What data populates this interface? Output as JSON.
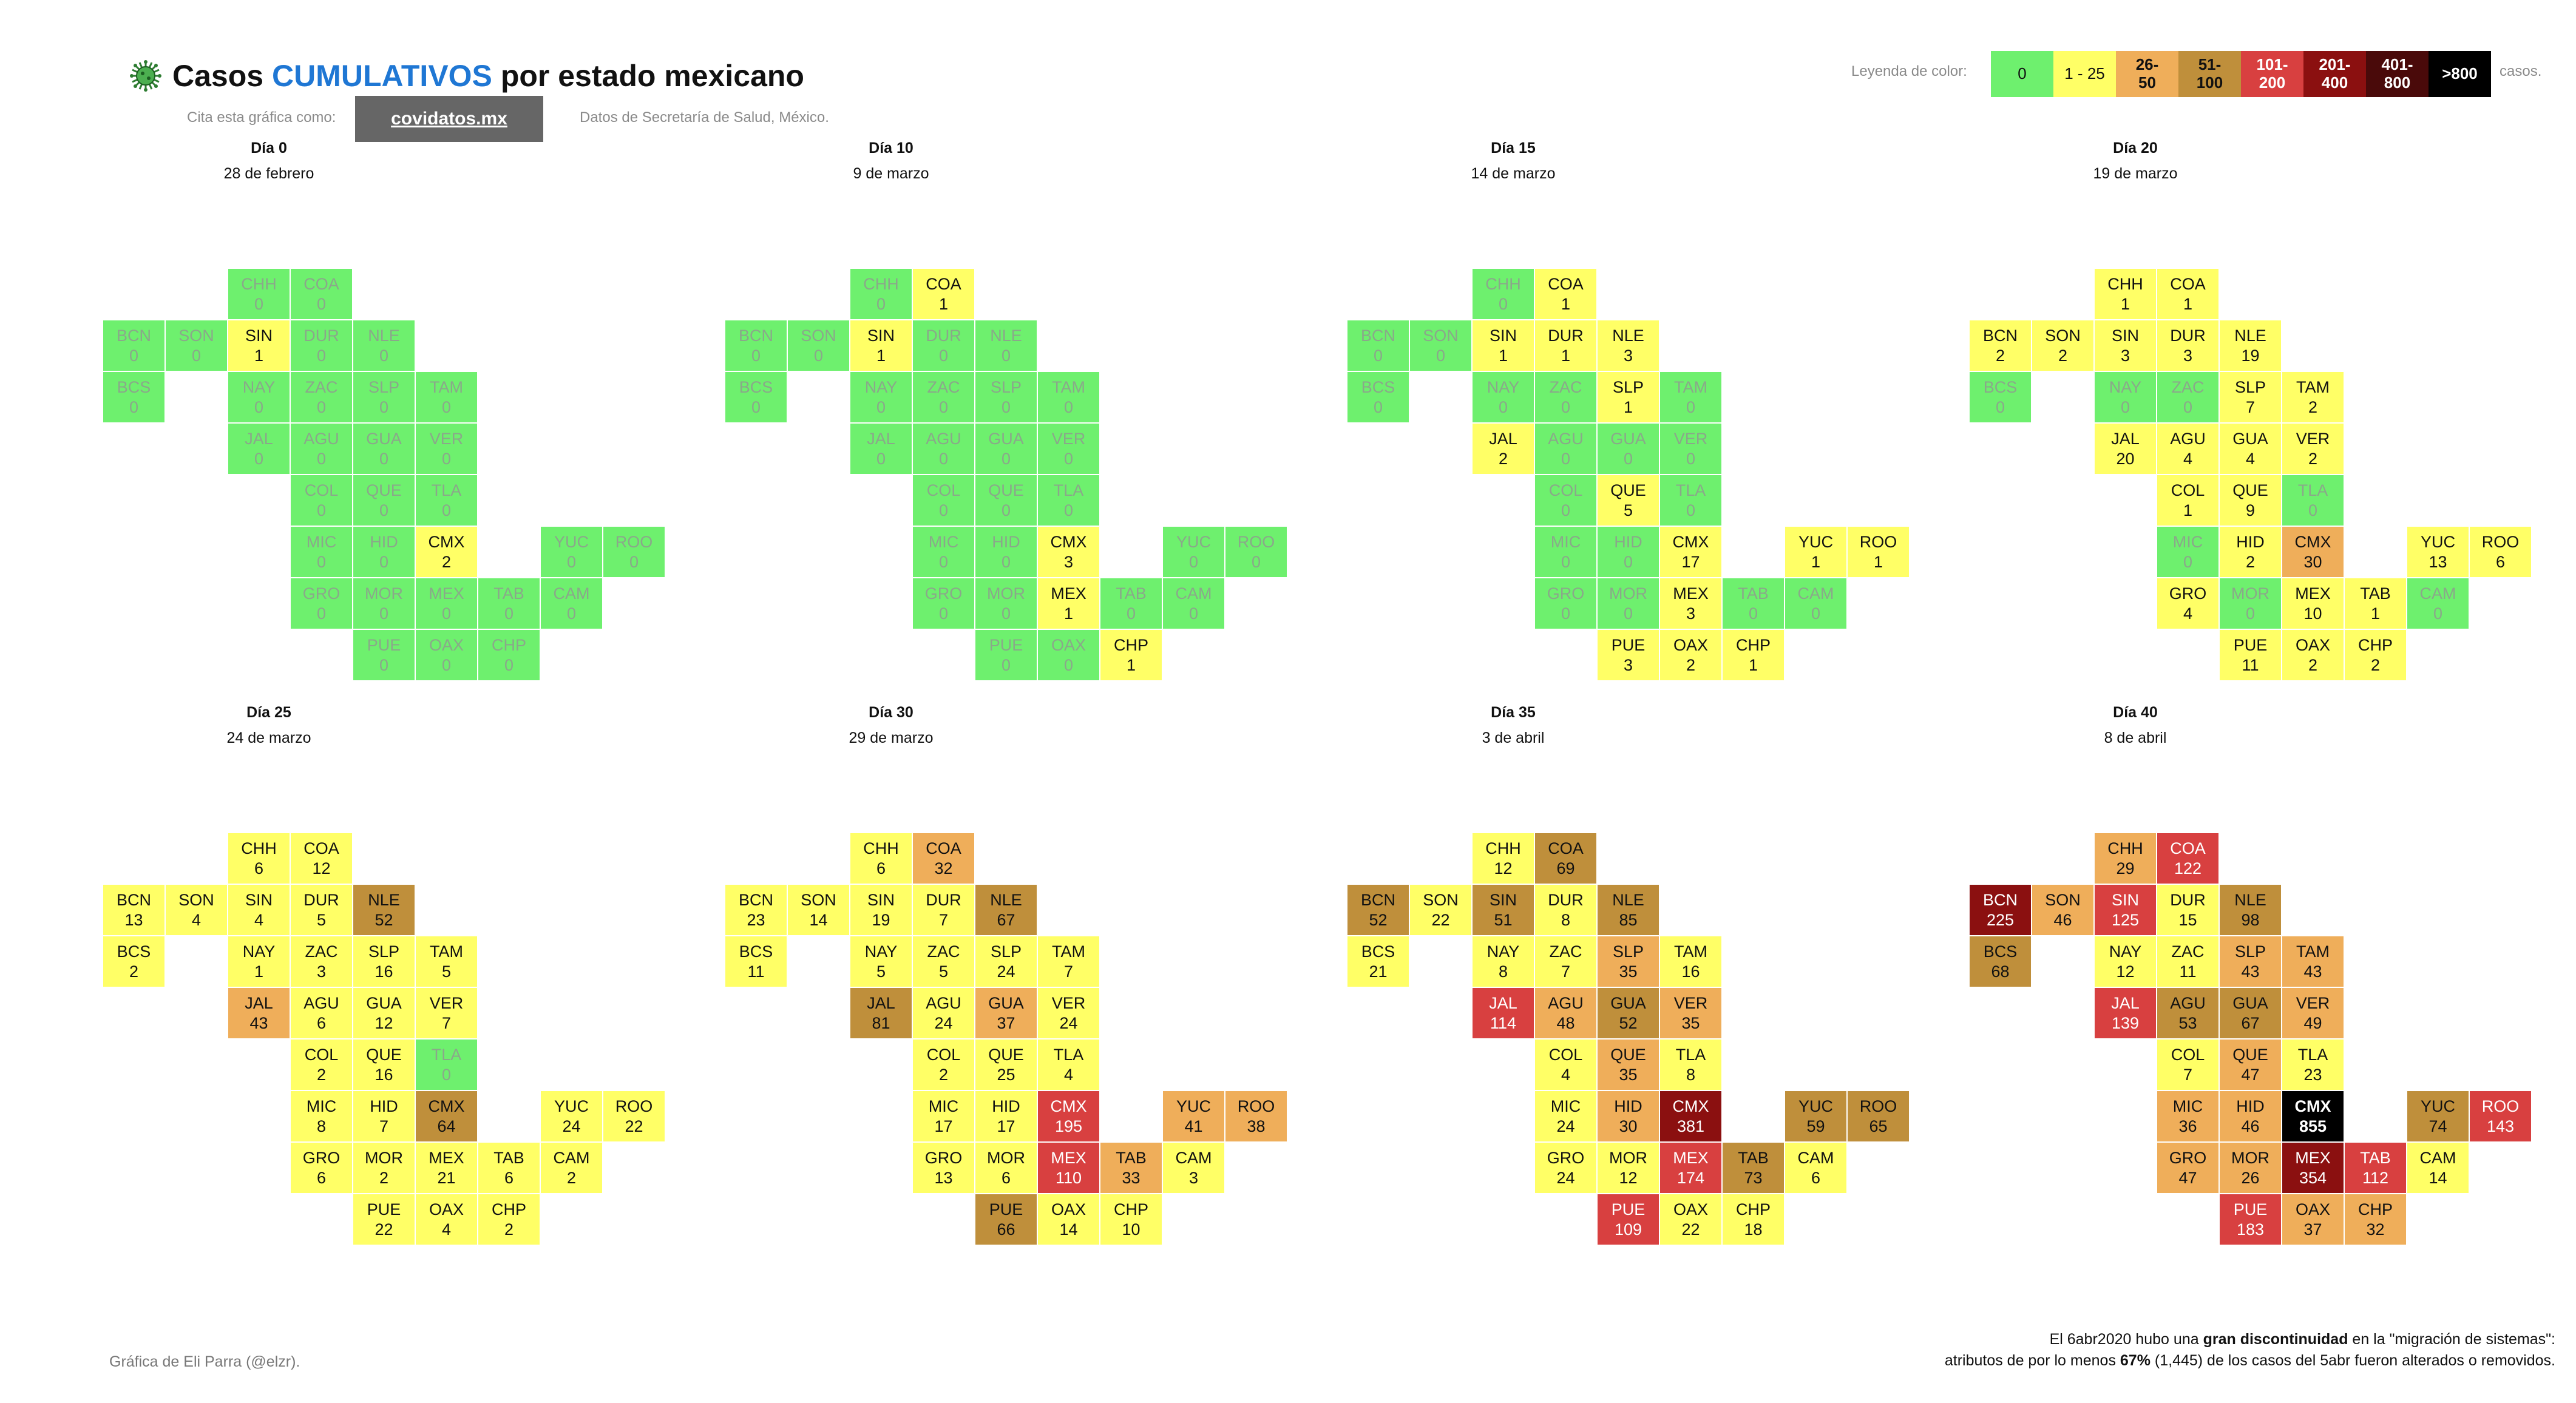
{
  "header": {
    "title_prefix": "Casos ",
    "title_accent": "CUMULATIVOS",
    "title_suffix": " por estado mexicano",
    "cite_label": "Cita esta gráfica como:",
    "cite_link": "covidatos.mx",
    "source": "Datos de Secretaría de Salud, México."
  },
  "legend": {
    "label": "Leyenda de color:",
    "suffix": "casos.",
    "items": [
      {
        "label": "0",
        "color": "#6ef06e",
        "text": "#111111"
      },
      {
        "label": "1 - 25",
        "color": "#ffff66",
        "text": "#111111"
      },
      {
        "label": "26-50",
        "color": "#efae5a",
        "text": "#111111"
      },
      {
        "label": "51-100",
        "color": "#bf8f3b",
        "text": "#111111"
      },
      {
        "label": "101-200",
        "color": "#d84040",
        "text": "#ffffff"
      },
      {
        "label": "201-400",
        "color": "#8b1010",
        "text": "#ffffff"
      },
      {
        "label": "401-800",
        "color": "#4a0a0a",
        "text": "#ffffff"
      },
      {
        "label": ">800",
        "color": "#000000",
        "text": "#ffffff"
      }
    ]
  },
  "footer": {
    "credit": "Gráfica de Eli Parra (@elzr).",
    "note_line1_a": "El 6abr2020 hubo una ",
    "note_line1_b": "gran discontinuidad",
    "note_line1_c": " en la \"migración de sistemas\":",
    "note_line2_a": "atributos de por lo menos ",
    "note_line2_b": "67%",
    "note_line2_c": " (1,445) de los casos del 5abr fueron alterados o removidos."
  },
  "chart_data": {
    "type": "heatmap",
    "title": "Casos CUMULATIVOS por estado mexicano",
    "states": [
      "CHH",
      "COA",
      "BCN",
      "SON",
      "SIN",
      "DUR",
      "NLE",
      "BCS",
      "NAY",
      "ZAC",
      "SLP",
      "TAM",
      "JAL",
      "AGU",
      "GUA",
      "VER",
      "COL",
      "QUE",
      "TLA",
      "MIC",
      "HID",
      "CMX",
      "YUC",
      "ROO",
      "GRO",
      "MOR",
      "MEX",
      "TAB",
      "CAM",
      "PUE",
      "OAX",
      "CHP"
    ],
    "panels": [
      {
        "day": "Día  0",
        "date": "28 de febrero",
        "values": {
          "CHH": 0,
          "COA": 0,
          "BCN": 0,
          "SON": 0,
          "SIN": 1,
          "DUR": 0,
          "NLE": 0,
          "BCS": 0,
          "NAY": 0,
          "ZAC": 0,
          "SLP": 0,
          "TAM": 0,
          "JAL": 0,
          "AGU": 0,
          "GUA": 0,
          "VER": 0,
          "COL": 0,
          "QUE": 0,
          "TLA": 0,
          "MIC": 0,
          "HID": 0,
          "CMX": 2,
          "YUC": 0,
          "ROO": 0,
          "GRO": 0,
          "MOR": 0,
          "MEX": 0,
          "TAB": 0,
          "CAM": 0,
          "PUE": 0,
          "OAX": 0,
          "CHP": 0
        }
      },
      {
        "day": "Día  10",
        "date": "9 de marzo",
        "values": {
          "CHH": 0,
          "COA": 1,
          "BCN": 0,
          "SON": 0,
          "SIN": 1,
          "DUR": 0,
          "NLE": 0,
          "BCS": 0,
          "NAY": 0,
          "ZAC": 0,
          "SLP": 0,
          "TAM": 0,
          "JAL": 0,
          "AGU": 0,
          "GUA": 0,
          "VER": 0,
          "COL": 0,
          "QUE": 0,
          "TLA": 0,
          "MIC": 0,
          "HID": 0,
          "CMX": 3,
          "YUC": 0,
          "ROO": 0,
          "GRO": 0,
          "MOR": 0,
          "MEX": 1,
          "TAB": 0,
          "CAM": 0,
          "PUE": 0,
          "OAX": 0,
          "CHP": 1
        }
      },
      {
        "day": "Día  15",
        "date": "14 de marzo",
        "values": {
          "CHH": 0,
          "COA": 1,
          "BCN": 0,
          "SON": 0,
          "SIN": 1,
          "DUR": 1,
          "NLE": 3,
          "BCS": 0,
          "NAY": 0,
          "ZAC": 0,
          "SLP": 1,
          "TAM": 0,
          "JAL": 2,
          "AGU": 0,
          "GUA": 0,
          "VER": 0,
          "COL": 0,
          "QUE": 5,
          "TLA": 0,
          "MIC": 0,
          "HID": 0,
          "CMX": 17,
          "YUC": 1,
          "ROO": 1,
          "GRO": 0,
          "MOR": 0,
          "MEX": 3,
          "TAB": 0,
          "CAM": 0,
          "PUE": 3,
          "OAX": 2,
          "CHP": 1
        }
      },
      {
        "day": "Día  20",
        "date": "19 de marzo",
        "values": {
          "CHH": 1,
          "COA": 1,
          "BCN": 2,
          "SON": 2,
          "SIN": 3,
          "DUR": 3,
          "NLE": 19,
          "BCS": 0,
          "NAY": 0,
          "ZAC": 0,
          "SLP": 7,
          "TAM": 2,
          "JAL": 20,
          "AGU": 4,
          "GUA": 4,
          "VER": 2,
          "COL": 1,
          "QUE": 9,
          "TLA": 0,
          "MIC": 0,
          "HID": 2,
          "CMX": 30,
          "YUC": 13,
          "ROO": 6,
          "GRO": 4,
          "MOR": 0,
          "MEX": 10,
          "TAB": 1,
          "CAM": 0,
          "PUE": 11,
          "OAX": 2,
          "CHP": 2
        }
      },
      {
        "day": "Día  25",
        "date": "24 de marzo",
        "values": {
          "CHH": 6,
          "COA": 12,
          "BCN": 13,
          "SON": 4,
          "SIN": 4,
          "DUR": 5,
          "NLE": 52,
          "BCS": 2,
          "NAY": 1,
          "ZAC": 3,
          "SLP": 16,
          "TAM": 5,
          "JAL": 43,
          "AGU": 6,
          "GUA": 12,
          "VER": 7,
          "COL": 2,
          "QUE": 16,
          "TLA": 0,
          "MIC": 8,
          "HID": 7,
          "CMX": 64,
          "YUC": 24,
          "ROO": 22,
          "GRO": 6,
          "MOR": 2,
          "MEX": 21,
          "TAB": 6,
          "CAM": 2,
          "PUE": 22,
          "OAX": 4,
          "CHP": 2
        }
      },
      {
        "day": "Día  30",
        "date": "29 de marzo",
        "values": {
          "CHH": 6,
          "COA": 32,
          "BCN": 23,
          "SON": 14,
          "SIN": 19,
          "DUR": 7,
          "NLE": 67,
          "BCS": 11,
          "NAY": 5,
          "ZAC": 5,
          "SLP": 24,
          "TAM": 7,
          "JAL": 81,
          "AGU": 24,
          "GUA": 37,
          "VER": 24,
          "COL": 2,
          "QUE": 25,
          "TLA": 4,
          "MIC": 17,
          "HID": 17,
          "CMX": 195,
          "YUC": 41,
          "ROO": 38,
          "GRO": 13,
          "MOR": 6,
          "MEX": 110,
          "TAB": 33,
          "CAM": 3,
          "PUE": 66,
          "OAX": 14,
          "CHP": 10
        }
      },
      {
        "day": "Día  35",
        "date": "3 de abril",
        "values": {
          "CHH": 12,
          "COA": 69,
          "BCN": 52,
          "SON": 22,
          "SIN": 51,
          "DUR": 8,
          "NLE": 85,
          "BCS": 21,
          "NAY": 8,
          "ZAC": 7,
          "SLP": 35,
          "TAM": 16,
          "JAL": 114,
          "AGU": 48,
          "GUA": 52,
          "VER": 35,
          "COL": 4,
          "QUE": 35,
          "TLA": 8,
          "MIC": 24,
          "HID": 30,
          "CMX": 381,
          "YUC": 59,
          "ROO": 65,
          "GRO": 24,
          "MOR": 12,
          "MEX": 174,
          "TAB": 73,
          "CAM": 6,
          "PUE": 109,
          "OAX": 22,
          "CHP": 18
        }
      },
      {
        "day": "Día  40",
        "date": "8 de abril",
        "values": {
          "CHH": 29,
          "COA": 122,
          "BCN": 225,
          "SON": 46,
          "SIN": 125,
          "DUR": 15,
          "NLE": 98,
          "BCS": 68,
          "NAY": 12,
          "ZAC": 11,
          "SLP": 43,
          "TAM": 43,
          "JAL": 139,
          "AGU": 53,
          "GUA": 67,
          "VER": 49,
          "COL": 7,
          "QUE": 47,
          "TLA": 23,
          "MIC": 36,
          "HID": 46,
          "CMX": 855,
          "YUC": 74,
          "ROO": 143,
          "GRO": 47,
          "MOR": 26,
          "MEX": 354,
          "TAB": 112,
          "CAM": 14,
          "PUE": 183,
          "OAX": 37,
          "CHP": 32
        }
      }
    ]
  }
}
